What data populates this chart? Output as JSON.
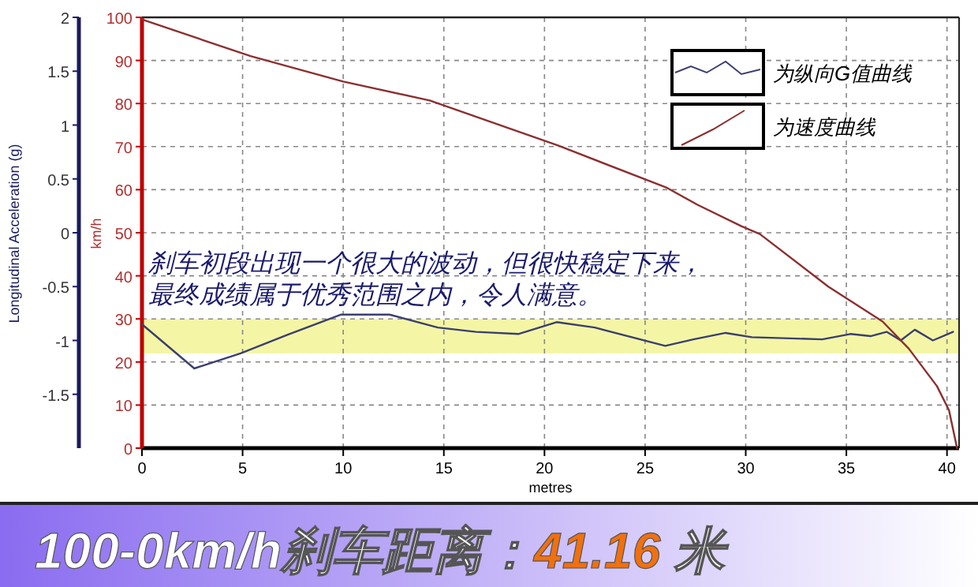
{
  "chart_data": {
    "type": "line",
    "title": "100-0km/h刹车距离：41.16 米",
    "xlabel": "metres",
    "ylabel": "km/h",
    "y2label": "Longitudinal Acceleration (g)",
    "annotations": [
      "刹车初段出现一个很大的波动，但很快稳定下来，",
      "最终成绩属于优秀范围之内，令人满意。"
    ],
    "xlim": [
      0,
      40.6
    ],
    "xticks": [
      0,
      5,
      10,
      15,
      20,
      25,
      30,
      35,
      40
    ],
    "ylim": [
      0,
      100
    ],
    "yticks": [
      0,
      10,
      20,
      30,
      40,
      50,
      60,
      70,
      80,
      90,
      100
    ],
    "y2lim": [
      -2,
      2
    ],
    "y2ticks": [
      -1.5,
      -1,
      -0.5,
      0,
      0.5,
      1,
      1.5,
      2
    ],
    "grid": true,
    "legend": "top right",
    "bands": [
      {
        "axis": "y",
        "from": 22,
        "to": 30,
        "color": "#f4f6a6"
      }
    ],
    "series": [
      {
        "name": "为纵向G值曲线",
        "color": "#3b3f6e",
        "axis": "y2",
        "x": [
          0,
          2.6,
          4.9,
          7.2,
          9.9,
          12.3,
          14.7,
          16.6,
          18.7,
          20.6,
          22.5,
          26.0,
          27.4,
          29.0,
          30.3,
          33.8,
          35.2,
          36.2,
          37.0,
          37.7,
          38.4,
          39.3,
          40.3
        ],
        "values": [
          -0.85,
          -1.26,
          -1.12,
          -0.95,
          -0.76,
          -0.76,
          -0.88,
          -0.92,
          -0.94,
          -0.83,
          -0.88,
          -1.05,
          -0.99,
          -0.93,
          -0.97,
          -0.99,
          -0.94,
          -0.96,
          -0.92,
          -1.0,
          -0.9,
          -1.0,
          -0.92
        ]
      },
      {
        "name": "为速度曲线",
        "color": "#8b2f2f",
        "axis": "y",
        "x": [
          0,
          5.4,
          10.0,
          14.3,
          20.7,
          26.1,
          27.6,
          29.8,
          30.7,
          34.1,
          36.8,
          38.1,
          39.5,
          40.1,
          40.5
        ],
        "values": [
          99.5,
          91.0,
          85.1,
          80.7,
          70.2,
          60.4,
          56.5,
          51.5,
          49.7,
          37.5,
          29.4,
          23.1,
          14.4,
          8.8,
          0
        ]
      }
    ]
  }
}
